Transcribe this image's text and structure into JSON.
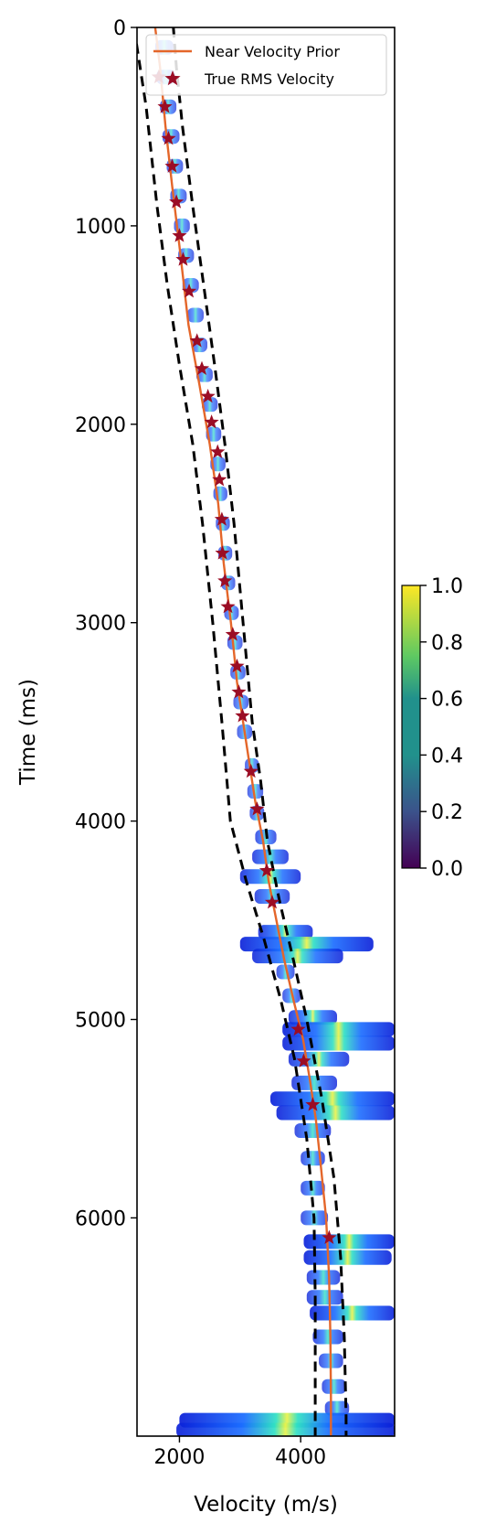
{
  "chart_data": {
    "type": "scatter",
    "xlabel": "Velocity (m/s)",
    "ylabel": "Time (ms)",
    "xlim": [
      1300,
      5550
    ],
    "ylim": [
      7100,
      0
    ],
    "y_inverted": true,
    "xticks": [
      2000,
      4000
    ],
    "yticks": [
      0,
      1000,
      2000,
      3000,
      4000,
      5000,
      6000
    ],
    "xtick_labels": [
      "2000",
      "4000"
    ],
    "ytick_labels": [
      "0",
      "1000",
      "2000",
      "3000",
      "4000",
      "5000",
      "6000"
    ],
    "legend": {
      "placement": "top-right",
      "entries": [
        {
          "label": "Near Velocity Prior",
          "marker": "line",
          "color": "#e4662a"
        },
        {
          "label": "True RMS Velocity",
          "marker": "star",
          "color": "#9b0d25"
        }
      ]
    },
    "colorbar": {
      "min": 0.0,
      "max": 1.0,
      "ticks": [
        0.0,
        0.2,
        0.4,
        0.6,
        0.8,
        1.0
      ],
      "tick_labels": [
        "0.0",
        "0.2",
        "0.4",
        "0.6",
        "0.8",
        "1.0"
      ],
      "colormap": "viridis"
    },
    "prior_line": {
      "name": "Near Velocity Prior",
      "color": "#e4662a",
      "points": [
        [
          1600,
          0
        ],
        [
          1680,
          200
        ],
        [
          1770,
          500
        ],
        [
          1880,
          800
        ],
        [
          2000,
          1100
        ],
        [
          2150,
          1500
        ],
        [
          2330,
          1800
        ],
        [
          2500,
          2100
        ],
        [
          2640,
          2400
        ],
        [
          2730,
          2700
        ],
        [
          2850,
          3000
        ],
        [
          2950,
          3300
        ],
        [
          3100,
          3600
        ],
        [
          3250,
          3900
        ],
        [
          3380,
          4100
        ],
        [
          3470,
          4300
        ],
        [
          3600,
          4500
        ],
        [
          3730,
          4700
        ],
        [
          3880,
          4900
        ],
        [
          4040,
          5100
        ],
        [
          4150,
          5300
        ],
        [
          4250,
          5500
        ],
        [
          4320,
          5700
        ],
        [
          4420,
          6000
        ],
        [
          4470,
          6300
        ],
        [
          4490,
          6600
        ],
        [
          4500,
          6900
        ],
        [
          4500,
          7100
        ]
      ]
    },
    "bound_left": {
      "name": "lower bound",
      "color": "#000000",
      "points": [
        [
          1250,
          0
        ],
        [
          1450,
          400
        ],
        [
          1630,
          900
        ],
        [
          1800,
          1300
        ],
        [
          2000,
          1700
        ],
        [
          2220,
          2100
        ],
        [
          2380,
          2500
        ],
        [
          2550,
          3000
        ],
        [
          2700,
          3500
        ],
        [
          2840,
          4000
        ],
        [
          3100,
          4300
        ],
        [
          3400,
          4600
        ],
        [
          3670,
          4900
        ],
        [
          3900,
          5200
        ],
        [
          4100,
          5600
        ],
        [
          4220,
          6000
        ],
        [
          4240,
          6400
        ],
        [
          4240,
          6800
        ],
        [
          4240,
          7100
        ]
      ]
    },
    "bound_right": {
      "name": "upper bound",
      "color": "#000000",
      "points": [
        [
          1900,
          0
        ],
        [
          1950,
          200
        ],
        [
          2050,
          500
        ],
        [
          2220,
          900
        ],
        [
          2400,
          1300
        ],
        [
          2580,
          1700
        ],
        [
          2750,
          2100
        ],
        [
          2900,
          2500
        ],
        [
          3050,
          3000
        ],
        [
          3200,
          3500
        ],
        [
          3340,
          3800
        ],
        [
          3450,
          4100
        ],
        [
          3650,
          4400
        ],
        [
          3880,
          4700
        ],
        [
          4100,
          5000
        ],
        [
          4350,
          5400
        ],
        [
          4550,
          5800
        ],
        [
          4660,
          6200
        ],
        [
          4720,
          6600
        ],
        [
          4750,
          7000
        ],
        [
          4750,
          7100
        ]
      ]
    },
    "true_rms": {
      "name": "True RMS Velocity",
      "color": "#9b0d25",
      "points": [
        [
          1660,
          250
        ],
        [
          1760,
          400
        ],
        [
          1820,
          560
        ],
        [
          1880,
          700
        ],
        [
          1950,
          880
        ],
        [
          2000,
          1050
        ],
        [
          2060,
          1170
        ],
        [
          2160,
          1330
        ],
        [
          2290,
          1580
        ],
        [
          2370,
          1720
        ],
        [
          2470,
          1860
        ],
        [
          2530,
          1990
        ],
        [
          2630,
          2140
        ],
        [
          2660,
          2280
        ],
        [
          2700,
          2480
        ],
        [
          2710,
          2650
        ],
        [
          2750,
          2790
        ],
        [
          2800,
          2920
        ],
        [
          2880,
          3060
        ],
        [
          2950,
          3220
        ],
        [
          2980,
          3350
        ],
        [
          3040,
          3470
        ],
        [
          3180,
          3750
        ],
        [
          3280,
          3940
        ],
        [
          3440,
          4250
        ],
        [
          3530,
          4410
        ],
        [
          3960,
          5050
        ],
        [
          4050,
          5210
        ],
        [
          4200,
          5430
        ],
        [
          4470,
          6100
        ]
      ]
    },
    "semblance": {
      "name": "semblance",
      "bands": [
        [
          100,
          1600,
          1900,
          0.25
        ],
        [
          250,
          1620,
          1930,
          0.3
        ],
        [
          400,
          1680,
          1950,
          0.3
        ],
        [
          550,
          1720,
          2000,
          0.3
        ],
        [
          700,
          1790,
          2060,
          0.3
        ],
        [
          850,
          1850,
          2120,
          0.3
        ],
        [
          1000,
          1910,
          2170,
          0.3
        ],
        [
          1150,
          1980,
          2240,
          0.3
        ],
        [
          1300,
          2050,
          2320,
          0.3
        ],
        [
          1450,
          2130,
          2400,
          0.3
        ],
        [
          1600,
          2200,
          2460,
          0.3
        ],
        [
          1750,
          2280,
          2550,
          0.3
        ],
        [
          1900,
          2370,
          2630,
          0.3
        ],
        [
          2050,
          2440,
          2690,
          0.3
        ],
        [
          2200,
          2510,
          2760,
          0.3
        ],
        [
          2350,
          2560,
          2790,
          0.3
        ],
        [
          2500,
          2600,
          2830,
          0.3
        ],
        [
          2650,
          2640,
          2870,
          0.3
        ],
        [
          2800,
          2690,
          2920,
          0.3
        ],
        [
          2950,
          2740,
          2980,
          0.3
        ],
        [
          3100,
          2790,
          3040,
          0.3
        ],
        [
          3250,
          2840,
          3090,
          0.3
        ],
        [
          3400,
          2890,
          3140,
          0.3
        ],
        [
          3550,
          2950,
          3200,
          0.3
        ],
        [
          3720,
          3080,
          3310,
          0.3
        ],
        [
          3850,
          3120,
          3380,
          0.3
        ],
        [
          3960,
          3160,
          3400,
          0.35
        ],
        [
          4080,
          3250,
          3600,
          0.45
        ],
        [
          4180,
          3200,
          3800,
          0.55
        ],
        [
          4280,
          3000,
          4000,
          0.65
        ],
        [
          4380,
          3240,
          3820,
          0.5
        ],
        [
          4560,
          3300,
          4200,
          0.65
        ],
        [
          4620,
          3000,
          5200,
          0.8
        ],
        [
          4680,
          3200,
          4700,
          0.7
        ],
        [
          4760,
          3600,
          3900,
          0.4
        ],
        [
          4880,
          3700,
          4000,
          0.4
        ],
        [
          4990,
          3800,
          4600,
          0.6
        ],
        [
          5050,
          3700,
          5550,
          0.8
        ],
        [
          5120,
          3700,
          5550,
          0.75
        ],
        [
          5200,
          3800,
          4800,
          0.6
        ],
        [
          5320,
          3850,
          4600,
          0.55
        ],
        [
          5400,
          3500,
          5550,
          0.8
        ],
        [
          5470,
          3600,
          5550,
          0.75
        ],
        [
          5560,
          3900,
          4500,
          0.5
        ],
        [
          5700,
          4000,
          4400,
          0.45
        ],
        [
          5850,
          4000,
          4400,
          0.45
        ],
        [
          6000,
          4000,
          4450,
          0.45
        ],
        [
          6120,
          4050,
          5550,
          0.8
        ],
        [
          6200,
          4050,
          5500,
          0.75
        ],
        [
          6300,
          4100,
          4650,
          0.5
        ],
        [
          6400,
          4100,
          4700,
          0.5
        ],
        [
          6480,
          4150,
          5550,
          0.75
        ],
        [
          6600,
          4200,
          4700,
          0.5
        ],
        [
          6720,
          4300,
          4700,
          0.45
        ],
        [
          6850,
          4350,
          4750,
          0.45
        ],
        [
          6960,
          4400,
          4800,
          0.45
        ],
        [
          7020,
          2000,
          5550,
          0.85
        ],
        [
          7070,
          1950,
          5550,
          0.8
        ]
      ]
    }
  }
}
